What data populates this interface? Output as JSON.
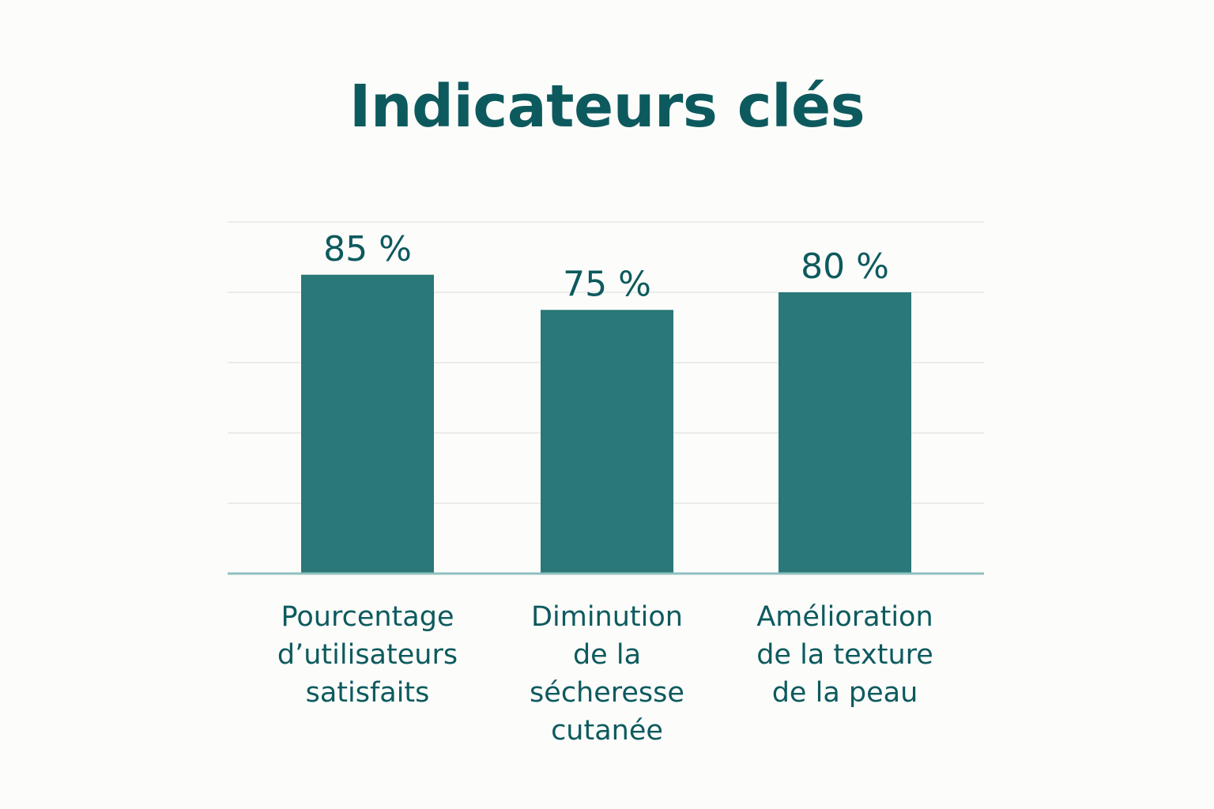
{
  "chart_data": {
    "type": "bar",
    "title": "Indicateurs clés",
    "categories": [
      [
        "Pourcentage",
        "d’utilisateurs",
        "satisfaits"
      ],
      [
        "Diminution",
        "de la",
        "sécheresse",
        "cutanée"
      ],
      [
        "Amélioration",
        "de la texture",
        "de la peau"
      ]
    ],
    "values": [
      85,
      75,
      80
    ],
    "value_labels": [
      "85 %",
      "75 %",
      "80 %"
    ],
    "unit": "%",
    "xlabel": "",
    "ylabel": "",
    "ylim": [
      0,
      100
    ],
    "grid": true,
    "legend": "none"
  },
  "colors": {
    "title": "#0d5a5e",
    "bar": "#2a7878",
    "label": "#0d5a5e",
    "grid": "#ebebeb",
    "axis": "#8fbfc0",
    "background": "#fcfcfa"
  }
}
